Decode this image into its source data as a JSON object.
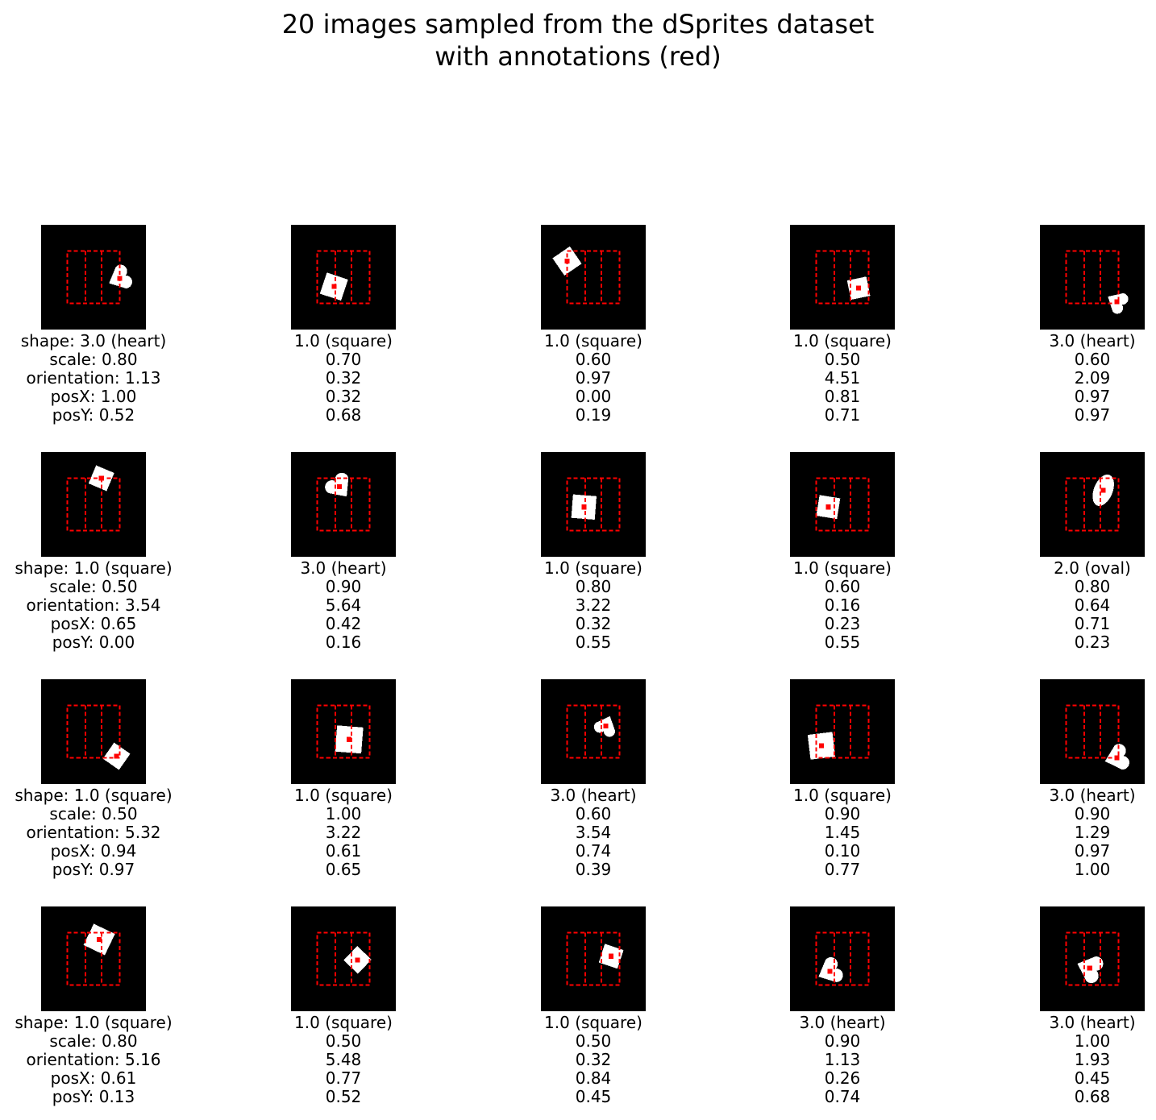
{
  "figure": {
    "title_line1": "20 images sampled from the dSprites dataset",
    "title_line2": "with annotations (red)",
    "colors": {
      "background": "#000000",
      "sprite": "#ffffff",
      "annotation": "#ff0000"
    }
  },
  "samples": [
    {
      "shape": "3.0 (heart)",
      "scale": "0.80",
      "orientation": "1.13",
      "posX": "1.00",
      "posY": "0.52",
      "kind": "heart"
    },
    {
      "shape": "1.0 (square)",
      "scale": "0.70",
      "orientation": "0.32",
      "posX": "0.32",
      "posY": "0.68",
      "kind": "square"
    },
    {
      "shape": "1.0 (square)",
      "scale": "0.60",
      "orientation": "0.97",
      "posX": "0.00",
      "posY": "0.19",
      "kind": "square"
    },
    {
      "shape": "1.0 (square)",
      "scale": "0.50",
      "orientation": "4.51",
      "posX": "0.81",
      "posY": "0.71",
      "kind": "square"
    },
    {
      "shape": "3.0 (heart)",
      "scale": "0.60",
      "orientation": "2.09",
      "posX": "0.97",
      "posY": "0.97",
      "kind": "heart"
    },
    {
      "shape": "1.0 (square)",
      "scale": "0.50",
      "orientation": "3.54",
      "posX": "0.65",
      "posY": "0.00",
      "kind": "square"
    },
    {
      "shape": "3.0 (heart)",
      "scale": "0.90",
      "orientation": "5.64",
      "posX": "0.42",
      "posY": "0.16",
      "kind": "heart"
    },
    {
      "shape": "1.0 (square)",
      "scale": "0.80",
      "orientation": "3.22",
      "posX": "0.32",
      "posY": "0.55",
      "kind": "square"
    },
    {
      "shape": "1.0 (square)",
      "scale": "0.60",
      "orientation": "0.16",
      "posX": "0.23",
      "posY": "0.55",
      "kind": "square"
    },
    {
      "shape": "2.0 (oval)",
      "scale": "0.80",
      "orientation": "0.64",
      "posX": "0.71",
      "posY": "0.23",
      "kind": "oval"
    },
    {
      "shape": "1.0 (square)",
      "scale": "0.50",
      "orientation": "5.32",
      "posX": "0.94",
      "posY": "0.97",
      "kind": "square"
    },
    {
      "shape": "1.0 (square)",
      "scale": "1.00",
      "orientation": "3.22",
      "posX": "0.61",
      "posY": "0.65",
      "kind": "square"
    },
    {
      "shape": "3.0 (heart)",
      "scale": "0.60",
      "orientation": "3.54",
      "posX": "0.74",
      "posY": "0.39",
      "kind": "heart"
    },
    {
      "shape": "1.0 (square)",
      "scale": "0.90",
      "orientation": "1.45",
      "posX": "0.10",
      "posY": "0.77",
      "kind": "square"
    },
    {
      "shape": "3.0 (heart)",
      "scale": "0.90",
      "orientation": "1.29",
      "posX": "0.97",
      "posY": "1.00",
      "kind": "heart"
    },
    {
      "shape": "1.0 (square)",
      "scale": "0.80",
      "orientation": "5.16",
      "posX": "0.61",
      "posY": "0.13",
      "kind": "square"
    },
    {
      "shape": "1.0 (square)",
      "scale": "0.50",
      "orientation": "5.48",
      "posX": "0.77",
      "posY": "0.52",
      "kind": "square"
    },
    {
      "shape": "1.0 (square)",
      "scale": "0.50",
      "orientation": "0.32",
      "posX": "0.84",
      "posY": "0.45",
      "kind": "square"
    },
    {
      "shape": "3.0 (heart)",
      "scale": "0.90",
      "orientation": "1.13",
      "posX": "0.26",
      "posY": "0.74",
      "kind": "heart"
    },
    {
      "shape": "3.0 (heart)",
      "scale": "1.00",
      "orientation": "1.93",
      "posX": "0.45",
      "posY": "0.68",
      "kind": "heart"
    }
  ],
  "label_prefixes": {
    "shape": "shape: ",
    "scale": "scale: ",
    "orientation": "orientation: ",
    "posX": "posX: ",
    "posY": "posY: "
  }
}
